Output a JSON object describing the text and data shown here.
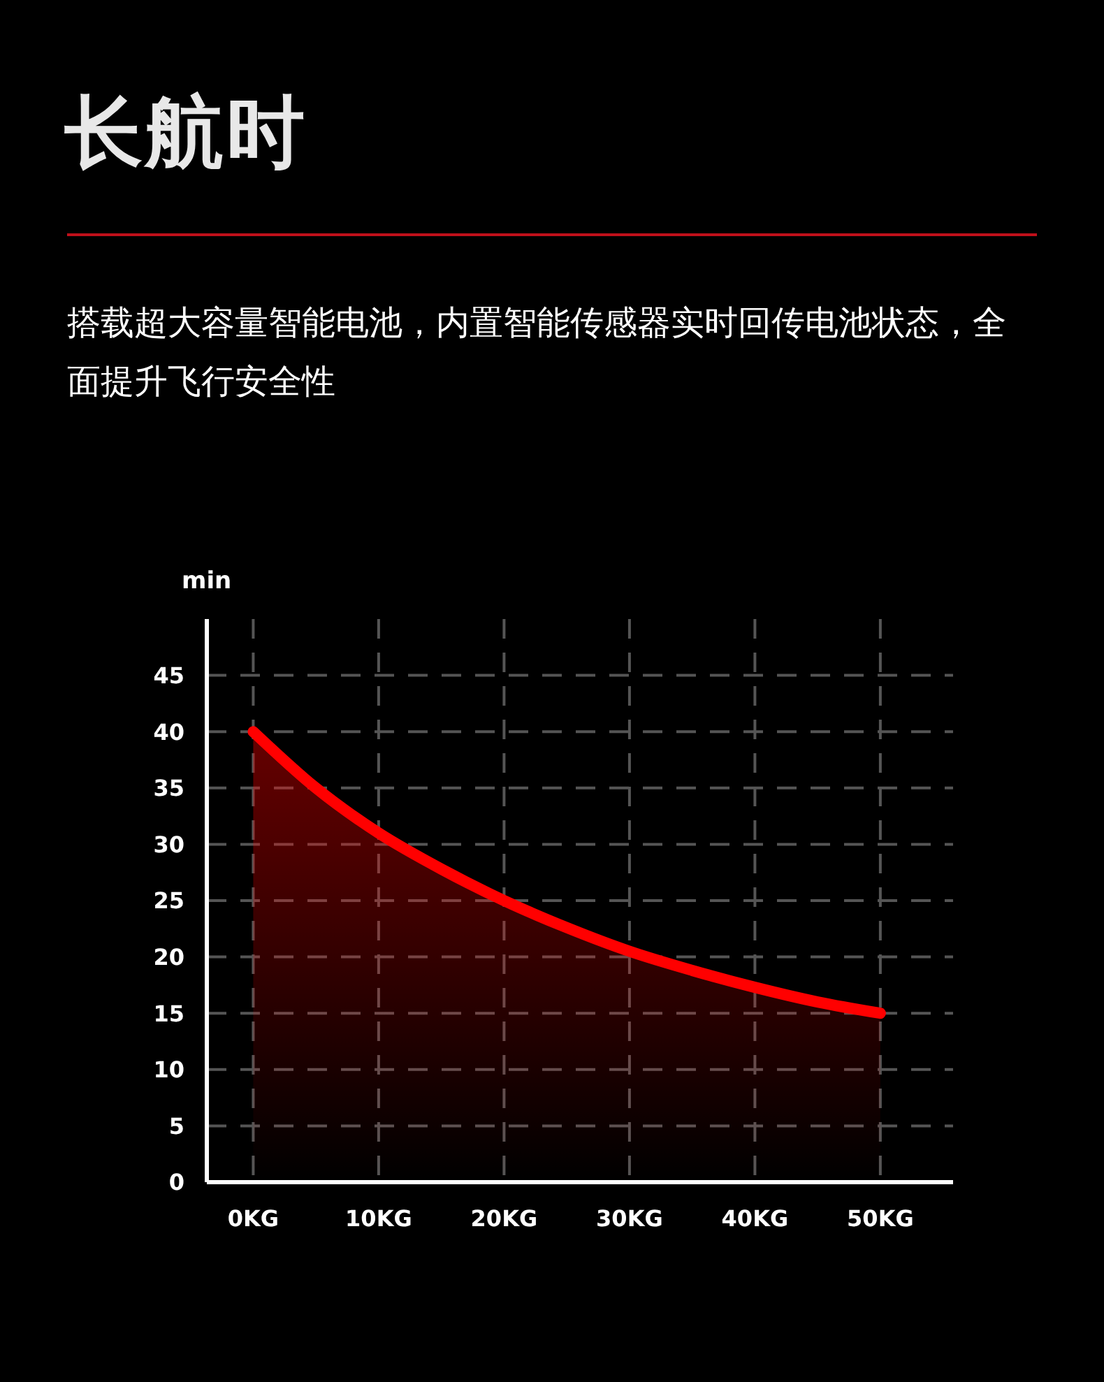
{
  "chart_data": {
    "type": "area",
    "title": "长航时",
    "subtitle": "搭载超大容量智能电池，内置智能传感器实时回传电池状态，全面提升飞行安全性",
    "ylabel": "min",
    "x": [
      0,
      5,
      10,
      15,
      20,
      25,
      30,
      35,
      40,
      45,
      50
    ],
    "series": [
      {
        "color": "#ff0000",
        "values": [
          40,
          35,
          31,
          27.8,
          25,
          22.6,
          20.5,
          18.8,
          17.3,
          16,
          15
        ]
      }
    ],
    "xlim": [
      -3.7,
      55.8
    ],
    "xticks": [
      {
        "value": 0,
        "label": "0KG"
      },
      {
        "value": 10,
        "label": "10KG"
      },
      {
        "value": 20,
        "label": "20KG"
      },
      {
        "value": 30,
        "label": "30KG"
      },
      {
        "value": 40,
        "label": "40KG"
      },
      {
        "value": 50,
        "label": "50KG"
      }
    ],
    "ylim": [
      0,
      50
    ],
    "yticks": [
      0,
      5,
      10,
      15,
      20,
      25,
      30,
      35,
      40,
      45
    ],
    "grid": true,
    "marker": "none",
    "line_style": "solid"
  }
}
